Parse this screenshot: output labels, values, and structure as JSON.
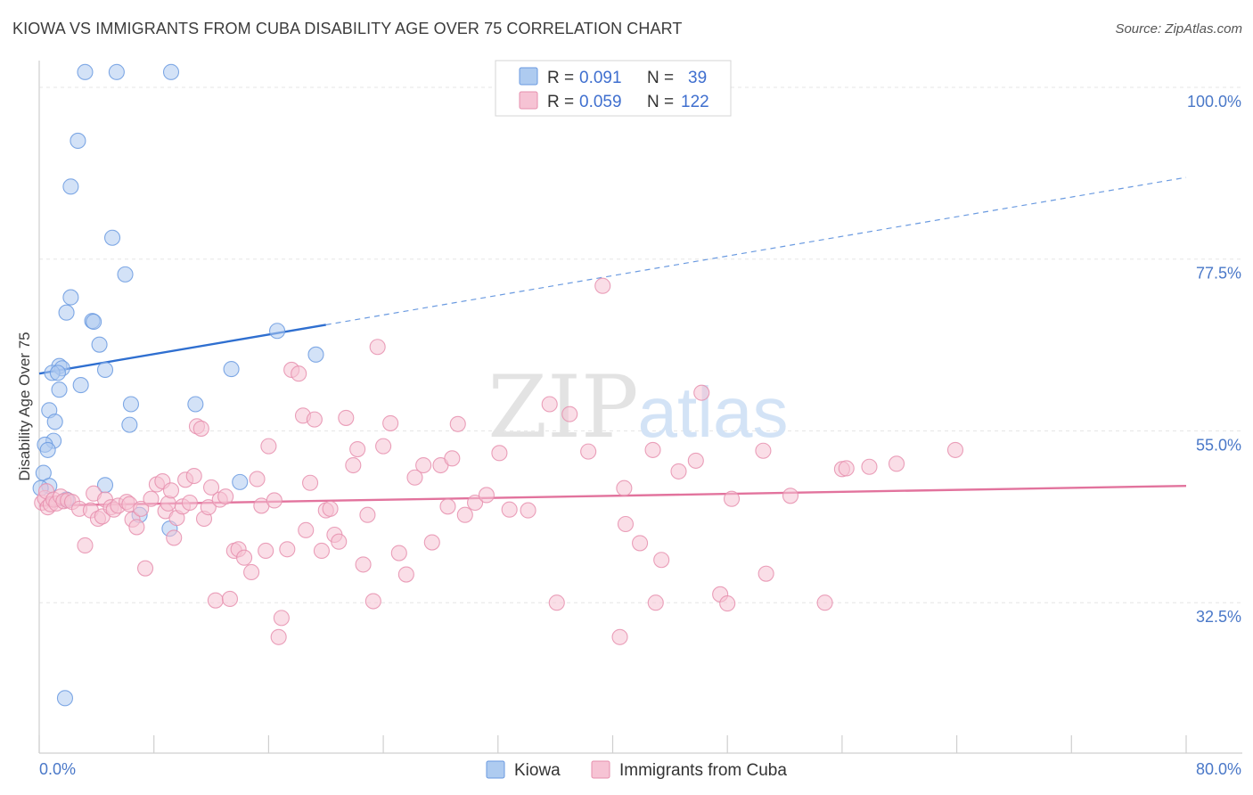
{
  "title": "KIOWA VS IMMIGRANTS FROM CUBA DISABILITY AGE OVER 75 CORRELATION CHART",
  "source": "Source: ZipAtlas.com",
  "watermark": {
    "zip": "ZIP",
    "atlas": "atlas"
  },
  "chart_data": {
    "type": "scatter",
    "xlabel": "",
    "ylabel": "Disability Age Over 75",
    "xlim": [
      0,
      80
    ],
    "ylim": [
      12.8,
      103.5
    ],
    "x_tick_labels": {
      "left": "0.0%",
      "right": "80.0%"
    },
    "y_ticks": [
      {
        "value": 32.5,
        "label": "32.5%"
      },
      {
        "value": 55.0,
        "label": "55.0%"
      },
      {
        "value": 77.5,
        "label": "77.5%"
      },
      {
        "value": 100.0,
        "label": "100.0%"
      }
    ],
    "legend": [
      {
        "name": "Kiowa",
        "r_label": "R =",
        "r": "0.091",
        "n_label": "N =",
        "n": "39"
      },
      {
        "name": "Immigrants from Cuba",
        "r_label": "R =",
        "r": "0.059",
        "n_label": "N =",
        "n": "122"
      }
    ],
    "series": [
      {
        "name": "Kiowa",
        "color": "#6a9ae0",
        "fill": "#aecbf0",
        "trend": {
          "x0": 0,
          "y0": 62.5,
          "x1": 20,
          "y1": 68.9,
          "dash_to_x": 80,
          "dash_to_y": 88.2
        },
        "points": [
          [
            3.2,
            102.0
          ],
          [
            5.4,
            102.0
          ],
          [
            9.2,
            102.0
          ],
          [
            2.7,
            93.0
          ],
          [
            2.2,
            87.0
          ],
          [
            5.1,
            80.3
          ],
          [
            6.0,
            75.5
          ],
          [
            2.2,
            72.5
          ],
          [
            1.9,
            70.5
          ],
          [
            3.7,
            69.4
          ],
          [
            3.8,
            69.3
          ],
          [
            4.2,
            66.3
          ],
          [
            16.6,
            68.1
          ],
          [
            19.3,
            65.0
          ],
          [
            1.4,
            63.5
          ],
          [
            1.6,
            63.2
          ],
          [
            0.9,
            62.6
          ],
          [
            1.3,
            62.6
          ],
          [
            4.6,
            63.0
          ],
          [
            13.4,
            63.1
          ],
          [
            2.9,
            61.0
          ],
          [
            1.4,
            60.4
          ],
          [
            6.4,
            58.5
          ],
          [
            10.9,
            58.5
          ],
          [
            0.7,
            57.7
          ],
          [
            1.1,
            56.2
          ],
          [
            6.3,
            55.8
          ],
          [
            1.0,
            53.7
          ],
          [
            0.4,
            53.2
          ],
          [
            0.6,
            52.5
          ],
          [
            0.3,
            49.5
          ],
          [
            0.7,
            47.8
          ],
          [
            0.1,
            47.5
          ],
          [
            4.6,
            47.9
          ],
          [
            14.0,
            48.3
          ],
          [
            1.9,
            46.0
          ],
          [
            7.0,
            44.0
          ],
          [
            9.1,
            42.2
          ],
          [
            1.8,
            20.0
          ]
        ]
      },
      {
        "name": "Immigrants from Cuba",
        "color": "#e68fae",
        "fill": "#f6c3d4",
        "trend": {
          "x0": 0,
          "y0": 45.2,
          "x1": 80,
          "y1": 47.8
        },
        "points": [
          [
            0.2,
            45.6
          ],
          [
            0.4,
            46.2
          ],
          [
            0.5,
            47.1
          ],
          [
            0.6,
            45.0
          ],
          [
            0.8,
            45.4
          ],
          [
            1.0,
            46.0
          ],
          [
            1.2,
            45.5
          ],
          [
            1.5,
            46.4
          ],
          [
            1.7,
            45.8
          ],
          [
            2.0,
            45.9
          ],
          [
            2.3,
            45.7
          ],
          [
            2.8,
            44.8
          ],
          [
            3.2,
            40.0
          ],
          [
            3.6,
            44.6
          ],
          [
            3.8,
            46.8
          ],
          [
            4.1,
            43.5
          ],
          [
            4.4,
            43.8
          ],
          [
            4.6,
            46.0
          ],
          [
            5.0,
            45.0
          ],
          [
            5.2,
            44.7
          ],
          [
            5.5,
            45.2
          ],
          [
            6.1,
            45.7
          ],
          [
            6.3,
            45.4
          ],
          [
            6.5,
            43.4
          ],
          [
            6.8,
            42.4
          ],
          [
            7.1,
            44.8
          ],
          [
            7.4,
            37.0
          ],
          [
            7.8,
            46.1
          ],
          [
            8.2,
            48.0
          ],
          [
            8.6,
            48.4
          ],
          [
            8.8,
            44.5
          ],
          [
            9.0,
            45.5
          ],
          [
            9.2,
            47.2
          ],
          [
            9.4,
            41.0
          ],
          [
            9.6,
            43.6
          ],
          [
            10.0,
            45.1
          ],
          [
            10.2,
            48.6
          ],
          [
            10.5,
            45.6
          ],
          [
            10.8,
            49.1
          ],
          [
            11.0,
            55.6
          ],
          [
            11.3,
            55.3
          ],
          [
            11.5,
            43.5
          ],
          [
            11.8,
            45.0
          ],
          [
            12.0,
            47.6
          ],
          [
            12.3,
            32.8
          ],
          [
            12.6,
            46.0
          ],
          [
            13.0,
            46.4
          ],
          [
            13.3,
            33.0
          ],
          [
            13.6,
            39.3
          ],
          [
            13.9,
            39.5
          ],
          [
            14.3,
            38.4
          ],
          [
            14.8,
            36.5
          ],
          [
            15.2,
            48.7
          ],
          [
            15.5,
            45.2
          ],
          [
            15.8,
            39.3
          ],
          [
            16.0,
            53.0
          ],
          [
            16.4,
            45.9
          ],
          [
            16.7,
            28.0
          ],
          [
            16.9,
            30.5
          ],
          [
            17.3,
            39.5
          ],
          [
            17.6,
            63.0
          ],
          [
            18.1,
            62.5
          ],
          [
            18.4,
            57.0
          ],
          [
            18.6,
            42.0
          ],
          [
            18.9,
            48.2
          ],
          [
            19.2,
            56.5
          ],
          [
            19.7,
            39.3
          ],
          [
            20.0,
            44.6
          ],
          [
            20.3,
            44.8
          ],
          [
            20.6,
            41.4
          ],
          [
            20.9,
            40.5
          ],
          [
            21.4,
            56.7
          ],
          [
            21.9,
            50.5
          ],
          [
            22.2,
            52.6
          ],
          [
            22.6,
            37.5
          ],
          [
            22.9,
            44.0
          ],
          [
            23.3,
            32.7
          ],
          [
            23.6,
            66.0
          ],
          [
            24.0,
            53.0
          ],
          [
            24.5,
            56.0
          ],
          [
            25.1,
            39.0
          ],
          [
            25.6,
            36.2
          ],
          [
            26.2,
            48.9
          ],
          [
            26.8,
            50.5
          ],
          [
            27.4,
            40.4
          ],
          [
            28.0,
            50.5
          ],
          [
            28.5,
            45.1
          ],
          [
            28.8,
            51.4
          ],
          [
            29.2,
            55.9
          ],
          [
            29.7,
            44.0
          ],
          [
            30.4,
            45.6
          ],
          [
            31.2,
            46.6
          ],
          [
            32.1,
            52.1
          ],
          [
            32.8,
            44.7
          ],
          [
            34.1,
            44.6
          ],
          [
            35.6,
            58.5
          ],
          [
            36.1,
            32.5
          ],
          [
            37.0,
            57.2
          ],
          [
            38.3,
            52.3
          ],
          [
            39.3,
            74.0
          ],
          [
            40.5,
            28.0
          ],
          [
            40.8,
            47.5
          ],
          [
            40.9,
            42.8
          ],
          [
            41.9,
            40.3
          ],
          [
            42.8,
            52.5
          ],
          [
            43.0,
            32.5
          ],
          [
            43.4,
            38.1
          ],
          [
            44.6,
            49.7
          ],
          [
            45.8,
            51.1
          ],
          [
            46.2,
            60.0
          ],
          [
            47.5,
            33.6
          ],
          [
            48.0,
            32.4
          ],
          [
            48.3,
            46.1
          ],
          [
            50.5,
            52.4
          ],
          [
            50.7,
            36.3
          ],
          [
            52.4,
            46.5
          ],
          [
            54.8,
            32.5
          ],
          [
            56.0,
            50.0
          ],
          [
            56.3,
            50.1
          ],
          [
            57.9,
            50.3
          ],
          [
            59.8,
            50.7
          ],
          [
            63.9,
            52.5
          ]
        ]
      }
    ]
  }
}
